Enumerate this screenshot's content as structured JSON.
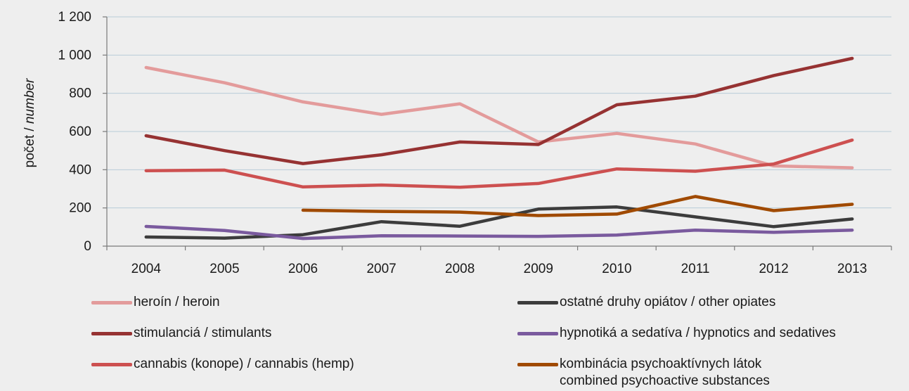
{
  "chart_data": {
    "type": "line",
    "ylabel": "počet / number",
    "ylabel_parts": [
      "počet / ",
      "number"
    ],
    "ylim": [
      0,
      1200
    ],
    "yticks": [
      "0",
      "200",
      "400",
      "600",
      "800",
      "1 000",
      "1 200"
    ],
    "ytick_values": [
      0,
      200,
      400,
      600,
      800,
      1000,
      1200
    ],
    "grid": true,
    "categories": [
      "2004",
      "2005",
      "2006",
      "2007",
      "2008",
      "2009",
      "2010",
      "2011",
      "2012",
      "2013"
    ],
    "series": [
      {
        "name": "heroín / heroin",
        "color": "#e39b9b",
        "values": [
          935,
          855,
          755,
          690,
          745,
          545,
          590,
          535,
          420,
          410
        ]
      },
      {
        "name": "stimulanciá / stimulants",
        "color": "#963232",
        "values": [
          578,
          500,
          432,
          478,
          545,
          532,
          740,
          785,
          893,
          983
        ]
      },
      {
        "name": "cannabis (konope) / cannabis (hemp)",
        "color": "#cd5050",
        "values": [
          395,
          398,
          310,
          320,
          308,
          328,
          404,
          392,
          430,
          555
        ]
      },
      {
        "name": "ostatné druhy opiátov / other opiates",
        "color": "#3c3c3c",
        "values": [
          48,
          42,
          60,
          128,
          104,
          194,
          205,
          153,
          102,
          142
        ]
      },
      {
        "name": "hypnotiká a sedatíva / hypnotics and sedatives",
        "color": "#7a5a9e",
        "values": [
          103,
          82,
          40,
          54,
          53,
          51,
          58,
          84,
          72,
          84
        ]
      },
      {
        "name": "kombinácia psychoaktívnych látok combined psychoactive substances",
        "name_lines": [
          "kombinácia psychoaktívnych látok",
          "combined psychoactive substances"
        ],
        "color": "#a04a00",
        "values": [
          null,
          null,
          188,
          182,
          178,
          160,
          168,
          260,
          186,
          219
        ]
      }
    ],
    "legend_position": "bottom"
  }
}
